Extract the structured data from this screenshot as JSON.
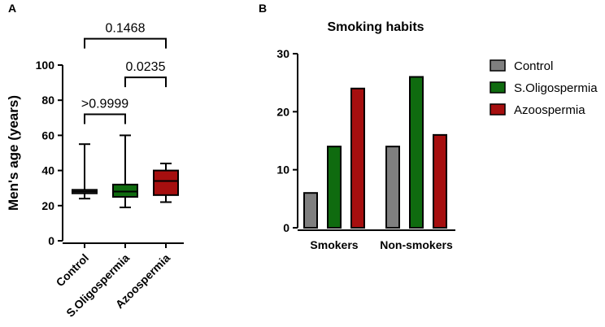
{
  "chart_data": [
    {
      "panel_label": "A",
      "type": "box",
      "ylabel": "Men's age (years)",
      "ylim": [
        0,
        100
      ],
      "yticks": [
        0,
        20,
        40,
        60,
        80,
        100
      ],
      "categories": [
        "Control",
        "S.Oligospermia",
        "Azoospermia"
      ],
      "boxes": [
        {
          "name": "Control",
          "min": 24,
          "q1": 27,
          "median": 28,
          "q3": 29,
          "max": 55,
          "color": "#7f7f7f"
        },
        {
          "name": "S.Oligospermia",
          "min": 19,
          "q1": 25,
          "median": 28,
          "q3": 32,
          "max": 60,
          "color": "#0f6b0f"
        },
        {
          "name": "Azoospermia",
          "min": 22,
          "q1": 26,
          "median": 34,
          "q3": 40,
          "max": 44,
          "color": "#a60f0f"
        }
      ],
      "comparisons": [
        {
          "from": 0,
          "to": 1,
          "label": ">0.9999",
          "y": 72
        },
        {
          "from": 1,
          "to": 2,
          "label": "0.0235",
          "y": 93
        },
        {
          "from": 0,
          "to": 2,
          "label": "0.1468",
          "y": 115
        }
      ]
    },
    {
      "panel_label": "B",
      "type": "bar",
      "title": "Smoking habits",
      "ylim": [
        0,
        30
      ],
      "yticks": [
        0,
        10,
        20,
        30
      ],
      "categories": [
        "Smokers",
        "Non-smokers"
      ],
      "series": [
        {
          "name": "Control",
          "color": "#7f7f7f",
          "values": [
            6,
            14
          ]
        },
        {
          "name": "S.Oligospermia",
          "color": "#0f6b0f",
          "values": [
            14,
            26
          ]
        },
        {
          "name": "Azoospermia",
          "color": "#a60f0f",
          "values": [
            24,
            16
          ]
        }
      ]
    }
  ]
}
